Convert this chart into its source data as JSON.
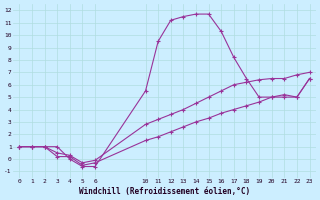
{
  "title": "",
  "xlabel": "Windchill (Refroidissement éolien,°C)",
  "ylabel": "",
  "bg_color": "#cceeff",
  "line_color": "#993399",
  "grid_color": "#aadddd",
  "xlim": [
    -0.5,
    23.5
  ],
  "ylim": [
    -1.5,
    12.5
  ],
  "xticks": [
    0,
    1,
    2,
    3,
    4,
    5,
    6,
    10,
    11,
    12,
    13,
    14,
    15,
    16,
    17,
    18,
    19,
    20,
    21,
    22,
    23
  ],
  "yticks": [
    -1,
    0,
    1,
    2,
    3,
    4,
    5,
    6,
    7,
    8,
    9,
    10,
    11,
    12
  ],
  "figwidth": 3.2,
  "figheight": 2.0,
  "series": [
    {
      "x": [
        0,
        1,
        2,
        3,
        4,
        5,
        6,
        10,
        11,
        12,
        13,
        14,
        15,
        16,
        17,
        18,
        19,
        20,
        21,
        22,
        23
      ],
      "y": [
        1,
        1,
        1,
        1,
        0,
        -0.6,
        -0.6,
        5.5,
        9.5,
        11.2,
        11.5,
        11.7,
        11.7,
        10.3,
        8.2,
        6.5,
        5.0,
        5.0,
        5.0,
        5.0,
        6.5
      ]
    },
    {
      "x": [
        0,
        1,
        2,
        3,
        4,
        5,
        6,
        10,
        11,
        12,
        13,
        14,
        15,
        16,
        17,
        18,
        19,
        20,
        21,
        22,
        23
      ],
      "y": [
        1,
        1,
        1,
        0.2,
        0.2,
        -0.5,
        -0.3,
        1.5,
        1.8,
        2.2,
        2.6,
        3.0,
        3.3,
        3.7,
        4.0,
        4.3,
        4.6,
        5.0,
        5.2,
        5.0,
        6.5
      ]
    },
    {
      "x": [
        0,
        1,
        2,
        3,
        4,
        5,
        6,
        10,
        11,
        12,
        13,
        14,
        15,
        16,
        17,
        18,
        19,
        20,
        21,
        22,
        23
      ],
      "y": [
        1,
        1,
        1,
        0.5,
        0.3,
        -0.3,
        -0.1,
        2.8,
        3.2,
        3.6,
        4.0,
        4.5,
        5.0,
        5.5,
        6.0,
        6.2,
        6.4,
        6.5,
        6.5,
        6.8,
        7.0
      ]
    }
  ]
}
